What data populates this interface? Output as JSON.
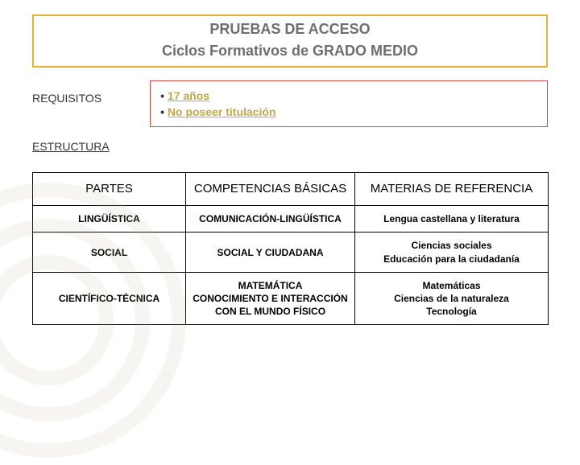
{
  "colors": {
    "title_border": "#e2b23a",
    "title_text": "#6e6e6e",
    "req_border": "#c94b4b",
    "req_label": "#333333",
    "req_highlight": "#c2a84a",
    "struct_label": "#333333",
    "swirl": "#d9d2c5"
  },
  "title": {
    "main": "PRUEBAS DE ACCESO",
    "sub": "Ciclos Formativos de GRADO MEDIO"
  },
  "requisitos": {
    "label": "REQUISITOS",
    "items": [
      "17 años",
      "No poseer titulación"
    ]
  },
  "estructura": {
    "label": "ESTRUCTURA"
  },
  "table": {
    "header": {
      "c0": "PARTES",
      "c1": "COMPETENCIAS BÁSICAS",
      "c2": "MATERIAS DE REFERENCIA"
    },
    "rows": [
      {
        "c0": "LINGÜÍSTICA",
        "c1": "COMUNICACIÓN-LINGÜÍSTICA",
        "c2": "Lengua castellana y literatura"
      },
      {
        "c0": "SOCIAL",
        "c1": "SOCIAL Y CIUDADANA",
        "c2": "Ciencias sociales\nEducación para la ciudadanía"
      },
      {
        "c0": "CIENTÍFICO-TÉCNICA",
        "c1": "MATEMÁTICA\nCONOCIMIENTO E INTERACCIÓN CON EL MUNDO FÍSICO",
        "c2": "Matemáticas\nCiencias de la naturaleza\nTecnología"
      }
    ]
  }
}
